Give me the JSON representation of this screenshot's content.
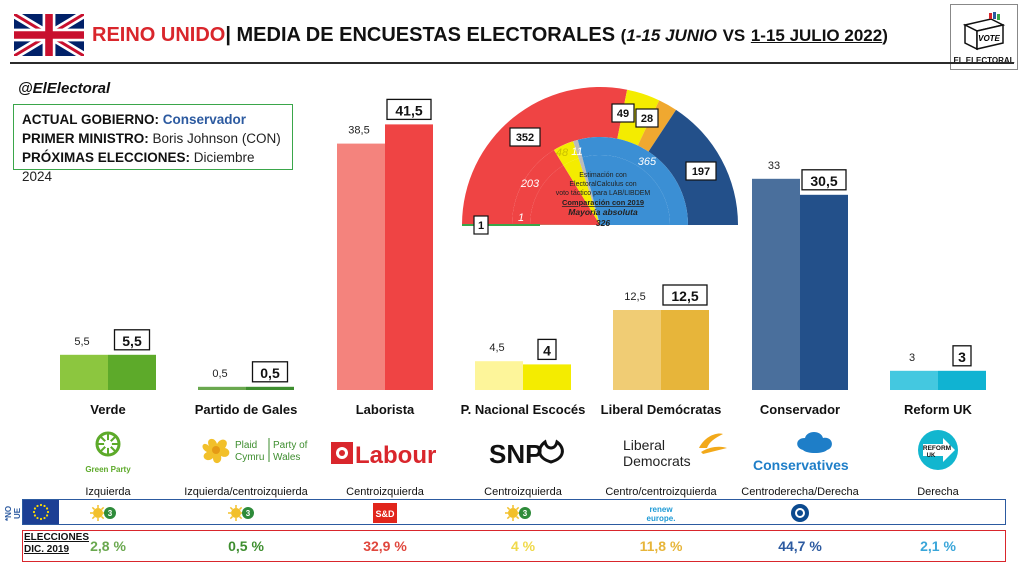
{
  "header": {
    "title_country": "REINO UNIDO",
    "title_sep": "|",
    "title_main": "MEDIA DE ENCUESTAS ELECTORALES",
    "title_period_open": "(",
    "title_period_a": "1-15 JUNIO",
    "title_vs": "VS",
    "title_period_b": "1-15 JULIO 2022",
    "title_period_close": ")",
    "brand": "EL ELECTORAL",
    "vote_label": "VOTE"
  },
  "handle": "@ElElectoral",
  "info": {
    "gov_label": "ACTUAL GOBIERNO:",
    "gov_value": "Conservador",
    "pm_label": "PRIMER MINISTRO:",
    "pm_value": "Boris Johnson (CON)",
    "elections_label": "PRÓXIMAS ELECCIONES:",
    "elections_value": "Diciembre 2024"
  },
  "chart_data": [
    {
      "type": "bar",
      "categories": [
        "Verde",
        "Partido de Gales",
        "Laborista",
        "P. Nacional Escocés",
        "Liberal Demócratas",
        "Conservador",
        "Reform UK"
      ],
      "series": [
        {
          "values": [
            5.5,
            0.5,
            38.5,
            4.5,
            12.5,
            33,
            3
          ],
          "colors": [
            "#8cc63f",
            "#6aa84f",
            "#f4837d",
            "#fdf59a",
            "#f0cc74",
            "#4a6f9c",
            "#44c8e0"
          ]
        },
        {
          "values": [
            5.5,
            0.5,
            41.5,
            4,
            12.5,
            30.5,
            3
          ],
          "colors": [
            "#5daa2a",
            "#3e8e2f",
            "#ef4444",
            "#f4ec00",
            "#e7b53a",
            "#23508a",
            "#10b3d2"
          ]
        }
      ],
      "labels_a": [
        "5,5",
        "0,5",
        "38,5",
        "4,5",
        "12,5",
        "33",
        "3"
      ],
      "labels_b": [
        "5,5",
        "0,5",
        "41,5",
        "4",
        "12,5",
        "30,5",
        "3"
      ],
      "ylim": [
        0,
        45
      ]
    },
    {
      "type": "pie",
      "subtype": "parliament-hemicycle",
      "outer_seats": [
        1,
        352,
        49,
        28,
        197
      ],
      "outer_colors": [
        "#3aa64a",
        "#ef4444",
        "#f4ec00",
        "#f0a830",
        "#23508a"
      ],
      "outer_colors_extra": [
        "#888888"
      ],
      "inner_seats": [
        1,
        203,
        48,
        11,
        365
      ],
      "inner_colors": [
        "#3aa64a",
        "#ef4444",
        "#f4ec00",
        "#bbbbbb",
        "#3b8fd4"
      ],
      "outer_labels": [
        "1",
        "352",
        "49",
        "28",
        "197"
      ],
      "inner_labels": [
        "1",
        "203",
        "48",
        "11",
        "365"
      ],
      "note_1": "Estimación con",
      "note_2": "ElectoralCalculus  con",
      "note_3": "voto táctico para LAB/LIBDEM",
      "note_4": "Comparación con 2019",
      "note_5": "Mayoría absoluta",
      "majority": "326"
    }
  ],
  "parties": [
    {
      "name": "Verde",
      "ideology": "Izquierda",
      "elections_2019": "2,8 %",
      "color": "#6aa84f",
      "logo_text": "Green Party",
      "eu_group": "green"
    },
    {
      "name": "Partido de Gales",
      "ideology": "Izquierda/centroizquierda",
      "elections_2019": "0,5 %",
      "color": "#3e8e2f",
      "logo_text_1": "Plaid",
      "logo_text_2": "Cymru",
      "logo_text_3": "Party of",
      "logo_text_4": "Wales",
      "eu_group": "green"
    },
    {
      "name": "Laborista",
      "ideology": "Centroizquierda",
      "elections_2019": "32,9 %",
      "color": "#e0473d",
      "logo_text": "Labour",
      "eu_group": "sd"
    },
    {
      "name": "P. Nacional Escocés",
      "ideology": "Centroizquierda",
      "elections_2019": "4 %",
      "color": "#f0d94a",
      "logo_text": "SNP",
      "eu_group": "green"
    },
    {
      "name": "Liberal Demócratas",
      "ideology": "Centro/centroizquierda",
      "elections_2019": "11,8 %",
      "color": "#e7b53a",
      "logo_text_1": "Liberal",
      "logo_text_2": "Democrats",
      "eu_group": "renew"
    },
    {
      "name": "Conservador",
      "ideology": "Centroderecha/Derecha",
      "elections_2019": "44,7 %",
      "color": "#2c5aa0",
      "logo_text": "Conservatives",
      "eu_group": "ecr"
    },
    {
      "name": "Reform UK",
      "ideology": "Derecha",
      "elections_2019": "2,1 %",
      "color": "#3aa6d9",
      "logo_text_1": "REFORM",
      "logo_text_2": "UK",
      "eu_group": ""
    }
  ],
  "eu_row": {
    "label": "*NO UE",
    "sd_text": "S&D",
    "renew_text_1": "renew",
    "renew_text_2": "europe.",
    "green_badge": "3"
  },
  "elections_row": {
    "label_1": "ELECCIONES",
    "label_2": "DIC. 2019"
  }
}
